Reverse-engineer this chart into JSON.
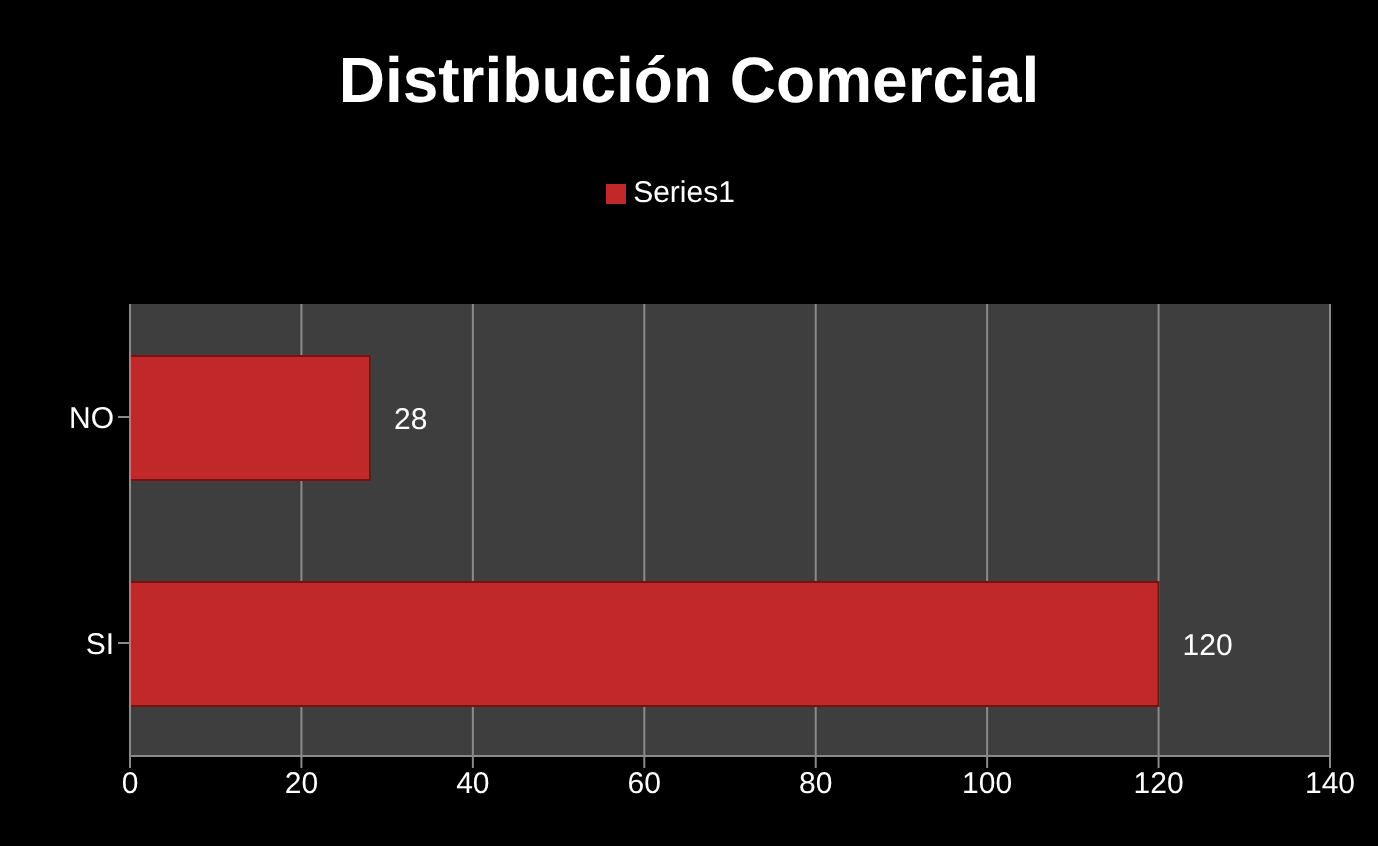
{
  "chart_data": {
    "type": "bar",
    "title": "Distribución Comercial",
    "orientation": "horizontal",
    "categories": [
      "NO",
      "SI"
    ],
    "series": [
      {
        "name": "Series1",
        "color": "#c0282a",
        "values": [
          28,
          120
        ]
      }
    ],
    "xlim": [
      0,
      140
    ],
    "xticks": [
      0,
      20,
      40,
      60,
      80,
      100,
      120,
      140
    ],
    "grid": "x",
    "legend": "top",
    "data_labels": true
  }
}
